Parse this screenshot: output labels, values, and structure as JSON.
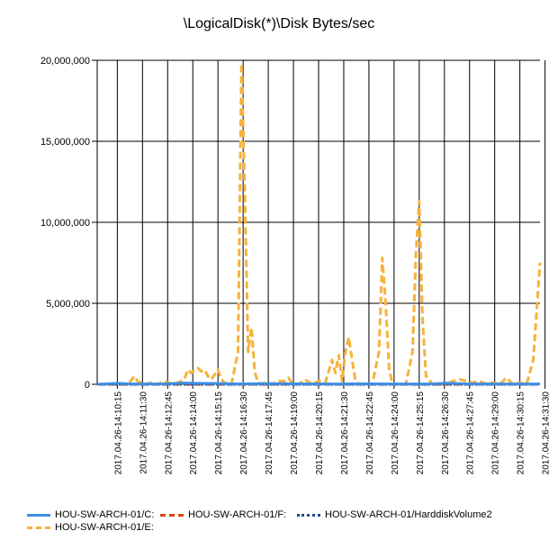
{
  "chart_data": {
    "type": "line",
    "title": "\\LogicalDisk(*)\\Disk Bytes/sec",
    "ylim": [
      0,
      20000000
    ],
    "y_ticks": [
      "20,000,000",
      "15,000,000",
      "10,000,000",
      "5,000,000",
      "0"
    ],
    "y_tick_values": [
      20000000,
      15000000,
      10000000,
      5000000,
      0
    ],
    "x_range": [
      0,
      132
    ],
    "x_tick_labels": [
      "2017.04.26-14:10:15",
      "2017.04.26-14:11:30",
      "2017.04.26-14:12:45",
      "2017.04.26-14:14:00",
      "2017.04.26-14:15:15",
      "2017.04.26-14:16:30",
      "2017.04.26-14:17:45",
      "2017.04.26-14:19:00",
      "2017.04.26-14:20:15",
      "2017.04.26-14:21:30",
      "2017.04.26-14:22:45",
      "2017.04.26-14:24:00",
      "2017.04.26-14:25:15",
      "2017.04.26-14:26:30",
      "2017.04.26-14:27:45",
      "2017.04.26-14:29:00",
      "2017.04.26-14:30:15",
      "2017.04.26-14:31:30"
    ],
    "x_tick_positions": [
      6,
      13.5,
      21,
      28.5,
      36,
      43.5,
      51,
      58.5,
      66,
      73.5,
      81,
      88.5,
      96,
      103.5,
      111,
      118.5,
      126,
      133.5
    ],
    "series": [
      {
        "name": "HOU-SW-ARCH-01/C:",
        "color": "#3c8ee6",
        "style": "solid",
        "x": [
          0,
          6,
          10,
          20,
          26,
          30,
          36,
          42,
          50,
          60,
          70,
          80,
          90,
          100,
          104,
          110,
          120,
          132
        ],
        "y": [
          0,
          60000,
          20000,
          30000,
          80000,
          60000,
          50000,
          20000,
          40000,
          30000,
          20000,
          30000,
          20000,
          30000,
          70000,
          30000,
          20000,
          20000
        ]
      },
      {
        "name": "HOU-SW-ARCH-01/F:",
        "color": "#d9480f",
        "style": "dashed",
        "x": [
          0,
          132
        ],
        "y": [
          0,
          0
        ]
      },
      {
        "name": "HOU-SW-ARCH-01/HarddiskVolume2",
        "color": "#1d4e89",
        "style": "dotted",
        "x": [
          0,
          132
        ],
        "y": [
          0,
          0
        ]
      },
      {
        "name": "HOU-SW-ARCH-01/E:",
        "color": "#f7b23b",
        "style": "dashed",
        "x": [
          0,
          8,
          10,
          11,
          12,
          14,
          16,
          18,
          20,
          22,
          24,
          26,
          27,
          28,
          30,
          31,
          32,
          33,
          34,
          35,
          36,
          37,
          38,
          40,
          42,
          43,
          44,
          45,
          46,
          47,
          48,
          49,
          50,
          52,
          54,
          56,
          57,
          58,
          60,
          62,
          64,
          66,
          68,
          70,
          71,
          72,
          73,
          74,
          75,
          76,
          77,
          78,
          80,
          82,
          84,
          85,
          86,
          87,
          88,
          90,
          92,
          94,
          95,
          96,
          97,
          98,
          100,
          102,
          104,
          106,
          108,
          110,
          112,
          114,
          116,
          118,
          120,
          122,
          124,
          126,
          128,
          130,
          132
        ],
        "y": [
          0,
          0,
          200000,
          500000,
          200000,
          0,
          100000,
          0,
          200000,
          50000,
          100000,
          300000,
          900000,
          700000,
          1000000,
          800000,
          900000,
          500000,
          300000,
          600000,
          900000,
          300000,
          100000,
          0,
          2000000,
          19800000,
          12000000,
          2000000,
          3500000,
          700000,
          100000,
          0,
          100000,
          0,
          200000,
          200000,
          400000,
          100000,
          0,
          300000,
          0,
          200000,
          100000,
          1500000,
          700000,
          1800000,
          200000,
          2000000,
          2900000,
          1500000,
          200000,
          0,
          0,
          0,
          2000000,
          7800000,
          5000000,
          1000000,
          0,
          0,
          0,
          2000000,
          8000000,
          11300000,
          4000000,
          500000,
          0,
          0,
          0,
          200000,
          300000,
          200000,
          100000,
          200000,
          0,
          100000,
          0,
          400000,
          0,
          100000,
          0,
          1500000,
          7500000
        ]
      }
    ]
  }
}
